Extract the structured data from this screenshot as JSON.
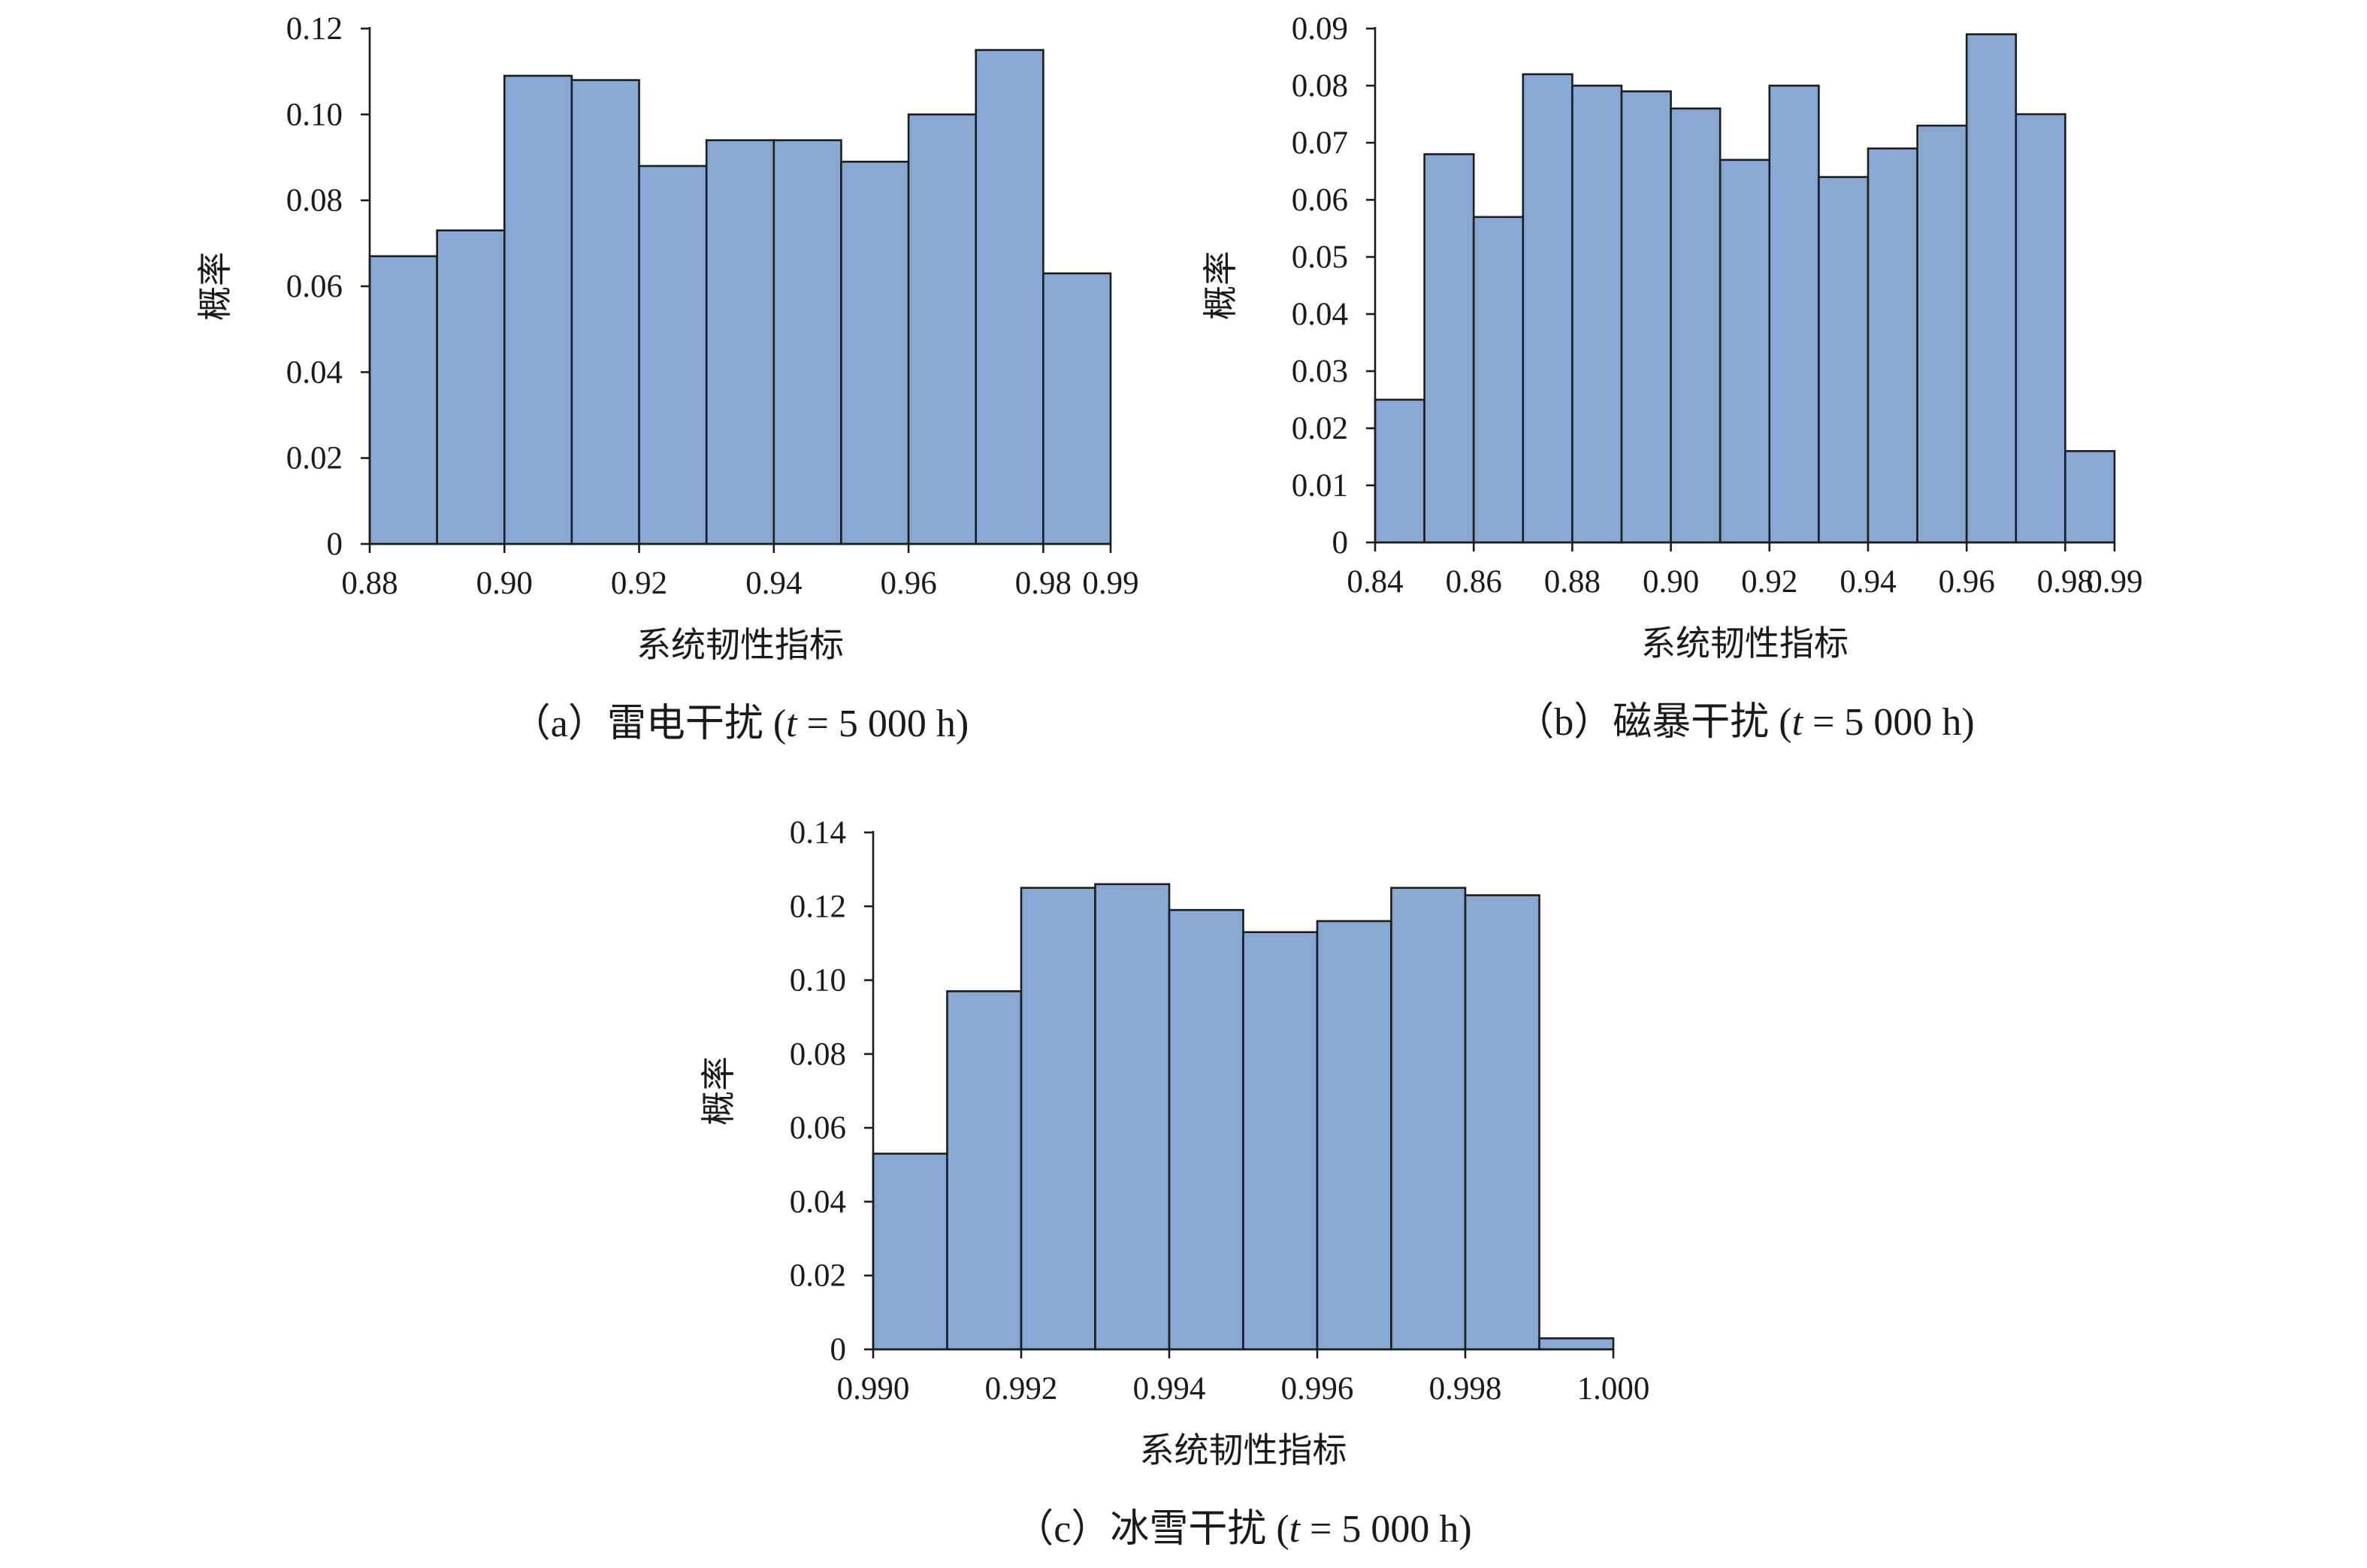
{
  "chart_data": [
    {
      "type": "bar",
      "histogram": true,
      "bin_edges": [
        0.88,
        0.89,
        0.9,
        0.91,
        0.92,
        0.93,
        0.94,
        0.95,
        0.96,
        0.97,
        0.98,
        0.99
      ],
      "values": [
        0.067,
        0.073,
        0.109,
        0.108,
        0.088,
        0.094,
        0.094,
        0.089,
        0.1,
        0.115,
        0.063
      ],
      "xlim": [
        0.88,
        0.99
      ],
      "ylim": [
        0,
        0.12
      ],
      "x_ticks": [
        0.88,
        0.9,
        0.92,
        0.94,
        0.96,
        0.98,
        0.99
      ],
      "x_tick_labels": [
        "0.88",
        "0.90",
        "0.92",
        "0.94",
        "0.96",
        "0.98",
        "0.99"
      ],
      "y_ticks": [
        0,
        0.02,
        0.04,
        0.06,
        0.08,
        0.1,
        0.12
      ],
      "y_tick_labels": [
        "0",
        "0.02",
        "0.04",
        "0.06",
        "0.08",
        "0.10",
        "0.12"
      ],
      "xlabel": "系统韧性指标",
      "ylabel": "概率",
      "caption": "（a）雷电干扰 (t = 5 000 h)",
      "caption_parts": {
        "prefix": "（a）雷电干扰 (",
        "var": "t",
        "suffix": " = 5 000 h)"
      },
      "grid": false,
      "bar_color": "#88a8d4",
      "edge_color": "#1c1c1c"
    },
    {
      "type": "bar",
      "histogram": true,
      "bin_edges": [
        0.84,
        0.85,
        0.86,
        0.87,
        0.88,
        0.89,
        0.9,
        0.91,
        0.92,
        0.93,
        0.94,
        0.95,
        0.96,
        0.97,
        0.98,
        0.99
      ],
      "values": [
        0.025,
        0.068,
        0.057,
        0.082,
        0.08,
        0.079,
        0.076,
        0.067,
        0.08,
        0.064,
        0.069,
        0.073,
        0.089,
        0.075,
        0.016
      ],
      "xlim": [
        0.84,
        0.99
      ],
      "ylim": [
        0,
        0.09
      ],
      "x_ticks": [
        0.84,
        0.86,
        0.88,
        0.9,
        0.92,
        0.94,
        0.96,
        0.98,
        0.99
      ],
      "x_tick_labels": [
        "0.84",
        "0.86",
        "0.88",
        "0.90",
        "0.92",
        "0.94",
        "0.96",
        "0.98",
        "0.99"
      ],
      "y_ticks": [
        0,
        0.01,
        0.02,
        0.03,
        0.04,
        0.05,
        0.06,
        0.07,
        0.08,
        0.09
      ],
      "y_tick_labels": [
        "0",
        "0.01",
        "0.02",
        "0.03",
        "0.04",
        "0.05",
        "0.06",
        "0.07",
        "0.08",
        "0.09"
      ],
      "xlabel": "系统韧性指标",
      "ylabel": "概率",
      "caption": "（b）磁暴干扰 (t = 5 000 h)",
      "caption_parts": {
        "prefix": "（b）磁暴干扰 (",
        "var": "t",
        "suffix": " = 5 000 h)"
      },
      "grid": false,
      "bar_color": "#88a8d4",
      "edge_color": "#1c1c1c"
    },
    {
      "type": "bar",
      "histogram": true,
      "bin_edges": [
        0.99,
        0.991,
        0.992,
        0.993,
        0.994,
        0.995,
        0.996,
        0.997,
        0.998,
        0.999,
        1.0
      ],
      "values": [
        0.053,
        0.097,
        0.125,
        0.126,
        0.119,
        0.113,
        0.116,
        0.125,
        0.123,
        0.003
      ],
      "xlim": [
        0.99,
        1.0
      ],
      "ylim": [
        0,
        0.14
      ],
      "x_ticks": [
        0.99,
        0.992,
        0.994,
        0.996,
        0.998,
        1.0
      ],
      "x_tick_labels": [
        "0.990",
        "0.992",
        "0.994",
        "0.996",
        "0.998",
        "1.000"
      ],
      "y_ticks": [
        0,
        0.02,
        0.04,
        0.06,
        0.08,
        0.1,
        0.12,
        0.14
      ],
      "y_tick_labels": [
        "0",
        "0.02",
        "0.04",
        "0.06",
        "0.08",
        "0.10",
        "0.12",
        "0.14"
      ],
      "xlabel": "系统韧性指标",
      "ylabel": "概率",
      "caption": "（c）冰雪干扰 (t = 5 000 h)",
      "caption_parts": {
        "prefix": "（c）冰雪干扰 (",
        "var": "t",
        "suffix": " = 5 000 h)"
      },
      "grid": false,
      "bar_color": "#88a8d4",
      "edge_color": "#1c1c1c"
    }
  ]
}
